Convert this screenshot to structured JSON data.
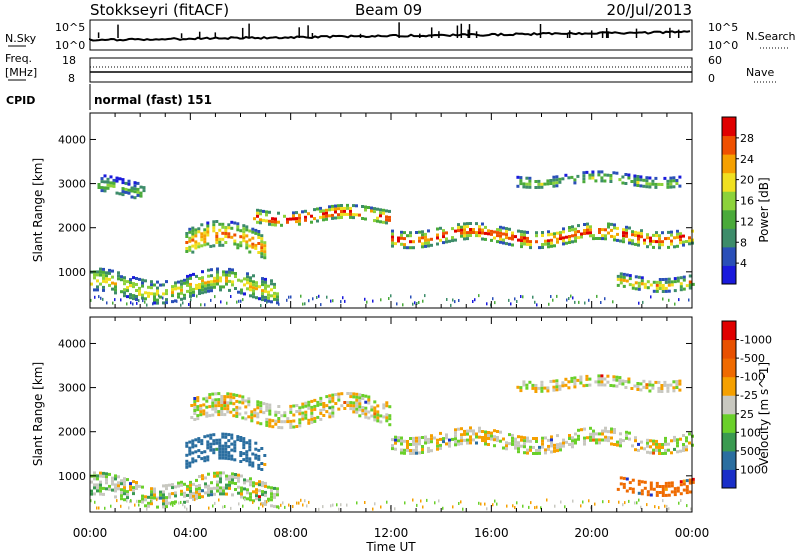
{
  "header": {
    "station": "Stokkseyri (fitACF)",
    "beam": "Beam 09",
    "date": "20/Jul/2013"
  },
  "nsky_panel": {
    "left_label": "N.Sky",
    "left_ticks": [
      "10^5",
      "10^0"
    ],
    "right_label": "N.Search",
    "right_ticks": [
      "10^5",
      "10^0"
    ]
  },
  "freq_panel": {
    "left_label_1": "Freq.",
    "left_label_2": "[MHz]",
    "left_ticks": [
      "18",
      "8"
    ],
    "right_label": "Nave",
    "right_ticks": [
      "60",
      "0"
    ]
  },
  "cpid": {
    "label": "CPID",
    "value": "normal (fast) 151"
  },
  "chart_data": [
    {
      "type": "heatmap",
      "panel": "power",
      "ylabel": "Slant Range [km]",
      "y_ticks": [
        1000,
        2000,
        3000,
        4000
      ],
      "ylim": [
        180,
        4600
      ],
      "xlim": [
        0,
        24
      ],
      "colorbar": {
        "label": "Power [dB]",
        "ticks": [
          "4",
          "8",
          "12",
          "16",
          "20",
          "24",
          "28"
        ],
        "colors": [
          "#1a1adc",
          "#2a4fb8",
          "#3d8c6a",
          "#4aaa3a",
          "#8cd23a",
          "#f0e020",
          "#f5a000",
          "#ef5000",
          "#e00000"
        ]
      },
      "features": [
        {
          "t_start": 0.0,
          "t_end": 7.5,
          "range_km": 700,
          "width_km": 500,
          "level": 0.55
        },
        {
          "t_start": 3.8,
          "t_end": 7.0,
          "range_km": 1700,
          "width_km": 600,
          "level": 0.7
        },
        {
          "t_start": 0.3,
          "t_end": 2.2,
          "range_km": 2900,
          "width_km": 400,
          "level": 0.35
        },
        {
          "t_start": 6.5,
          "t_end": 12.0,
          "range_km": 2300,
          "width_km": 300,
          "level": 0.85
        },
        {
          "t_start": 12.0,
          "t_end": 24.0,
          "range_km": 1850,
          "width_km": 350,
          "level": 0.8
        },
        {
          "t_start": 17.0,
          "t_end": 23.5,
          "range_km": 3100,
          "width_km": 250,
          "level": 0.4
        },
        {
          "t_start": 21.0,
          "t_end": 24.0,
          "range_km": 800,
          "width_km": 300,
          "level": 0.6
        }
      ]
    },
    {
      "type": "heatmap",
      "panel": "velocity",
      "ylabel": "Slant Range [km]",
      "y_ticks": [
        1000,
        2000,
        3000,
        4000
      ],
      "ylim": [
        180,
        4600
      ],
      "xlim": [
        0,
        24
      ],
      "xlabel": "Time UT",
      "x_tick_labels": [
        "00:00",
        "04:00",
        "08:00",
        "12:00",
        "16:00",
        "20:00",
        "00:00"
      ],
      "colorbar": {
        "label": "Velocity [m s^-1]",
        "ticks": [
          "1000",
          "500",
          "100",
          "25",
          "-25",
          "-100",
          "-500",
          "-1000"
        ],
        "colors": [
          "#1a2fc8",
          "#2a6ea0",
          "#3a9a50",
          "#6ad02a",
          "#c8c8c0",
          "#f5a000",
          "#ef6a00",
          "#e85000",
          "#e00000"
        ]
      },
      "features": [
        {
          "t_start": 0.0,
          "t_end": 7.5,
          "range_km": 700,
          "width_km": 500,
          "velocity": 20
        },
        {
          "t_start": 3.8,
          "t_end": 7.0,
          "range_km": 1500,
          "width_km": 600,
          "velocity": 250
        },
        {
          "t_start": 4.0,
          "t_end": 12.0,
          "range_km": 2500,
          "width_km": 500,
          "velocity": 0
        },
        {
          "t_start": 12.0,
          "t_end": 24.0,
          "range_km": 1800,
          "width_km": 400,
          "velocity": 0
        },
        {
          "t_start": 17.0,
          "t_end": 23.5,
          "range_km": 3100,
          "width_km": 250,
          "velocity": 0
        },
        {
          "t_start": 21.0,
          "t_end": 24.0,
          "range_km": 800,
          "width_km": 300,
          "velocity": -400
        }
      ]
    }
  ],
  "colors": {
    "background": "#ffffff",
    "frame": "#000000"
  }
}
